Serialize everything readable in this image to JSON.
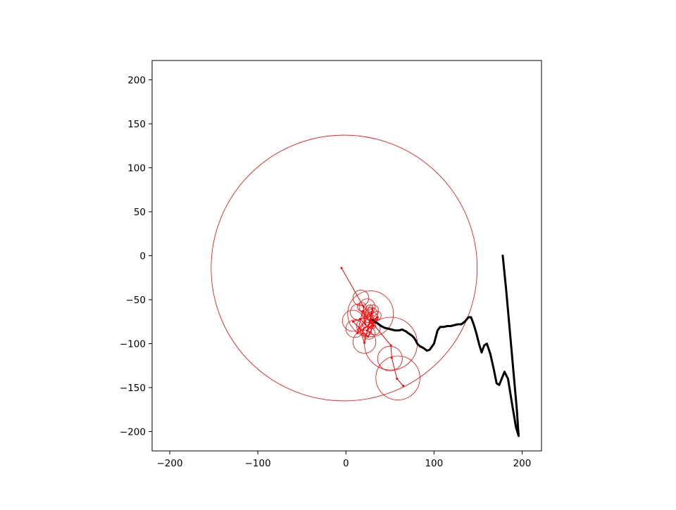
{
  "chart_data": {
    "type": "line",
    "title": "",
    "xlabel": "",
    "ylabel": "",
    "xlim": [
      -220,
      222
    ],
    "ylim": [
      -222,
      222
    ],
    "aspect": "equal",
    "grid": false,
    "xticks": [
      -200,
      -100,
      0,
      100,
      200
    ],
    "yticks": [
      -200,
      -150,
      -100,
      -50,
      0,
      50,
      100,
      150,
      200
    ],
    "xtick_labels": [
      "−200",
      "−100",
      "0",
      "100",
      "200"
    ],
    "ytick_labels": [
      "−200",
      "−150",
      "−100",
      "−50",
      "0",
      "50",
      "100",
      "150",
      "200"
    ],
    "colors": {
      "trace": "#000000",
      "epicycles": "#ff0000",
      "frame": "#000000"
    },
    "series": [
      {
        "role": "traced path",
        "style": "thick-black-line",
        "x": [
          178,
          182,
          186,
          190,
          194,
          196,
          193,
          188,
          184,
          180,
          178,
          176,
          174,
          171,
          168,
          164,
          160,
          157,
          154,
          151,
          148,
          145,
          142,
          139,
          135,
          131,
          127,
          123,
          119,
          115,
          111,
          107,
          104,
          100,
          95,
          92,
          88,
          84,
          81,
          79,
          77,
          75,
          72,
          68,
          64,
          60,
          56,
          52,
          48,
          44,
          40,
          36,
          33,
          30
        ],
        "y": [
          0,
          -40,
          -85,
          -130,
          -175,
          -205,
          -195,
          -165,
          -140,
          -132,
          -137,
          -142,
          -147,
          -145,
          -130,
          -112,
          -100,
          -102,
          -110,
          -100,
          -88,
          -78,
          -70,
          -70,
          -75,
          -78,
          -78,
          -79,
          -80,
          -80,
          -81,
          -81,
          -85,
          -100,
          -107,
          -108,
          -105,
          -103,
          -100,
          -96,
          -93,
          -91,
          -89,
          -86,
          -84,
          -85,
          -85,
          -84,
          -83,
          -82,
          -80,
          -77,
          -75,
          -73
        ]
      },
      {
        "role": "epicycle centers",
        "style": "thin-red-line",
        "x": [
          -5,
          20,
          22,
          16,
          8,
          25,
          31,
          19,
          13,
          36,
          24,
          29,
          15,
          21,
          30,
          28,
          51,
          52,
          58,
          65
        ],
        "y": [
          -14,
          -58,
          -78,
          -72,
          -75,
          -92,
          -80,
          -63,
          -88,
          -70,
          -85,
          -66,
          -82,
          -99,
          -60,
          -74,
          -102,
          -116,
          -140,
          -148
        ]
      }
    ],
    "epicycles": {
      "cx": [
        -2,
        28,
        51,
        59,
        50,
        17,
        21,
        24,
        14,
        8,
        10,
        21,
        26,
        32,
        29,
        30,
        27,
        31,
        24,
        35,
        18,
        25,
        30,
        27,
        33,
        28,
        22
      ],
      "cy": [
        -14,
        -66,
        -100,
        -139,
        -117,
        -48,
        -98,
        -58,
        -64,
        -74,
        -83,
        -80,
        -88,
        -83,
        -66,
        -70,
        -75,
        -62,
        -86,
        -68,
        -58,
        -72,
        -79,
        -60,
        -72,
        -64,
        -67
      ],
      "r": [
        151,
        26,
        30,
        25,
        14,
        9,
        13,
        9,
        9,
        12,
        10,
        9,
        7,
        7,
        7,
        6,
        6,
        6,
        5,
        5,
        5,
        4,
        4,
        4,
        3,
        3,
        3
      ]
    }
  }
}
